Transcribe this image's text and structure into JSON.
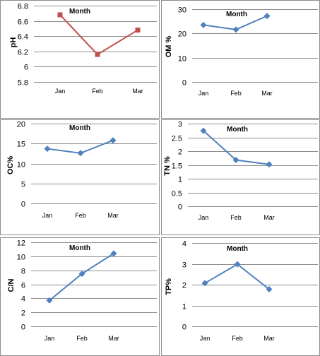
{
  "chart_data": [
    {
      "type": "line",
      "title": "Month",
      "xlabel": "",
      "ylabel": "pH",
      "categories": [
        "Jan",
        "Feb",
        "Mar"
      ],
      "values": [
        6.68,
        6.16,
        6.48
      ],
      "ylim": [
        5.8,
        6.8
      ],
      "yticks": [
        "5.8",
        "6",
        "6.2",
        "6.4",
        "6.6",
        "6.8"
      ],
      "color": "#c0504d",
      "marker": "square",
      "grid": true
    },
    {
      "type": "line",
      "title": "Month",
      "xlabel": "",
      "ylabel": "OM %",
      "categories": [
        "Jan",
        "Feb",
        "Mar"
      ],
      "values": [
        23.5,
        21.6,
        27.2
      ],
      "ylim": [
        0,
        30
      ],
      "yticks": [
        "0",
        "10",
        "20",
        "30"
      ],
      "color": "#4f81bd",
      "marker": "diamond",
      "grid": true
    },
    {
      "type": "line",
      "title": "Month",
      "xlabel": "",
      "ylabel": "OC%",
      "categories": [
        "Jan",
        "Feb",
        "Mar"
      ],
      "values": [
        13.7,
        12.6,
        15.8
      ],
      "ylim": [
        0,
        20
      ],
      "yticks": [
        "0",
        "5",
        "10",
        "15",
        "20"
      ],
      "color": "#4f81bd",
      "marker": "diamond",
      "grid": true
    },
    {
      "type": "line",
      "title": "Month",
      "xlabel": "",
      "ylabel": "TN %",
      "categories": [
        "Jan",
        "Feb",
        "Mar"
      ],
      "values": [
        2.74,
        1.68,
        1.52
      ],
      "ylim": [
        0,
        3
      ],
      "yticks": [
        "0",
        "0.5",
        "1",
        "1.5",
        "2",
        "2.5",
        "3"
      ],
      "color": "#4f81bd",
      "marker": "diamond",
      "grid": true
    },
    {
      "type": "line",
      "title": "Month",
      "xlabel": "",
      "ylabel": "C/N",
      "categories": [
        "Jan",
        "Feb",
        "Mar"
      ],
      "values": [
        3.7,
        7.5,
        10.4
      ],
      "ylim": [
        0,
        12
      ],
      "yticks": [
        "0",
        "2",
        "4",
        "6",
        "8",
        "10",
        "12"
      ],
      "color": "#4f81bd",
      "marker": "diamond",
      "grid": true
    },
    {
      "type": "line",
      "title": "Month",
      "xlabel": "",
      "ylabel": "TP%",
      "categories": [
        "Jan",
        "Feb",
        "Mar"
      ],
      "values": [
        2.07,
        2.98,
        1.78
      ],
      "ylim": [
        0,
        4
      ],
      "yticks": [
        "0",
        "1",
        "2",
        "3",
        "4"
      ],
      "color": "#4f81bd",
      "marker": "diamond",
      "grid": true
    }
  ]
}
